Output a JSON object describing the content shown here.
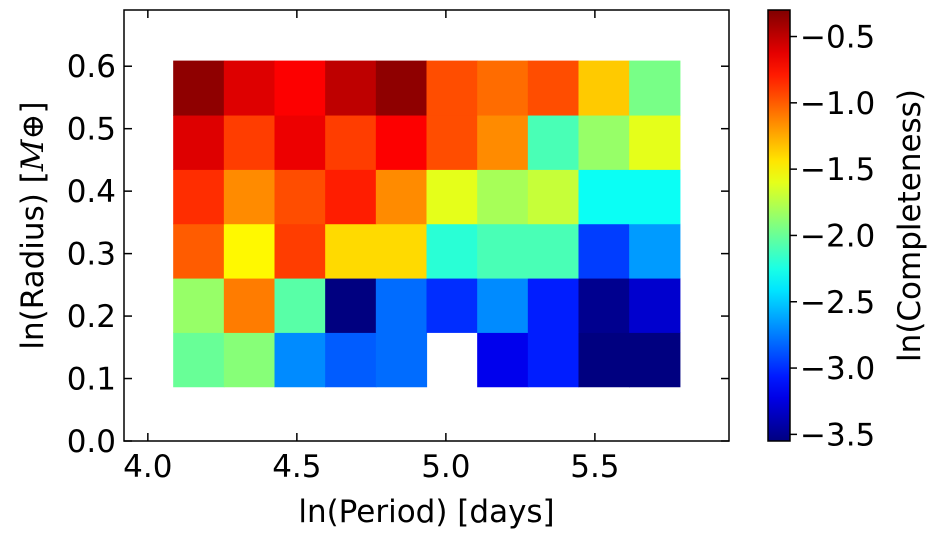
{
  "chart_data": {
    "type": "heatmap",
    "xlabel": "ln(Period) [days]",
    "ylabel": "ln(Radius) [",
    "ylabel_unit": "M⊕",
    "ylabel_close": "]",
    "colorbar_label": "ln(Completeness)",
    "colormap": "jet",
    "xlim": [
      3.92,
      5.95
    ],
    "ylim": [
      0.0,
      0.69
    ],
    "x_ticks": [
      4.0,
      4.5,
      5.0,
      5.5
    ],
    "x_tick_labels": [
      "4.0",
      "4.5",
      "5.0",
      "5.5"
    ],
    "y_ticks": [
      0.0,
      0.1,
      0.2,
      0.3,
      0.4,
      0.5,
      0.6
    ],
    "y_tick_labels": [
      "0.0",
      "0.1",
      "0.2",
      "0.3",
      "0.4",
      "0.5",
      "0.6"
    ],
    "color_range": [
      -3.55,
      -0.3
    ],
    "colorbar_ticks": [
      -0.5,
      -1.0,
      -1.5,
      -2.0,
      -2.5,
      -3.0,
      -3.5
    ],
    "colorbar_tick_labels": [
      "−0.5",
      "−1.0",
      "−1.5",
      "−2.0",
      "−2.5",
      "−3.0",
      "−3.5"
    ],
    "x_edges": [
      4.085,
      4.255,
      4.425,
      4.595,
      4.765,
      4.935,
      5.105,
      5.275,
      5.445,
      5.615,
      5.785
    ],
    "y_edges": [
      0.087,
      0.174,
      0.261,
      0.348,
      0.435,
      0.522,
      0.609
    ],
    "values_note_rows_bottom_to_top": "values[i][j]: i = radius row from bottom, j = period column from left",
    "values": [
      [
        -2.0,
        -1.9,
        -2.7,
        -2.85,
        -2.8,
        null,
        -3.2,
        -3.05,
        -3.55,
        -3.55
      ],
      [
        -1.85,
        -1.1,
        -2.05,
        -3.55,
        -2.8,
        -3.0,
        -2.7,
        -3.05,
        -3.5,
        -3.3
      ],
      [
        -1.0,
        -1.5,
        -0.9,
        -1.4,
        -1.4,
        -2.2,
        -2.1,
        -2.1,
        -2.95,
        -2.65
      ],
      [
        -0.85,
        -1.15,
        -0.95,
        -0.8,
        -1.15,
        -1.6,
        -1.8,
        -1.7,
        -2.3,
        -2.3
      ],
      [
        -0.6,
        -0.9,
        -0.65,
        -0.9,
        -0.7,
        -0.95,
        -1.15,
        -2.1,
        -1.85,
        -1.6
      ],
      [
        -0.35,
        -0.6,
        -0.7,
        -0.5,
        -0.35,
        -0.95,
        -1.05,
        -0.95,
        -1.35,
        -1.95
      ]
    ]
  }
}
